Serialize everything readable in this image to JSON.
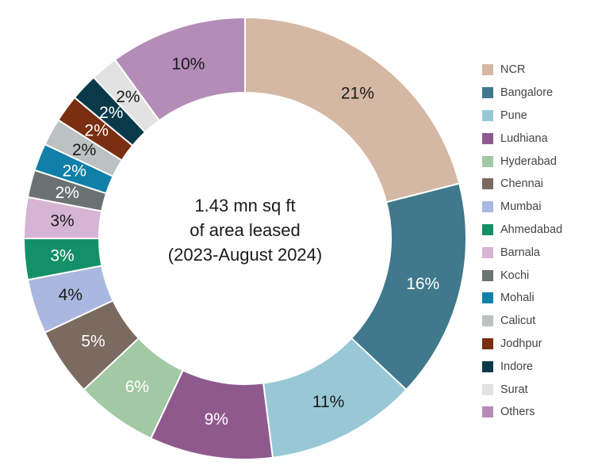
{
  "chart_data": {
    "type": "pie",
    "center_text": [
      "1.43 mn sq ft",
      "of area leased",
      "(2023-August 2024)"
    ],
    "slices": [
      {
        "name": "NCR",
        "value": 21,
        "label": "21%",
        "color": "#d5b8a3",
        "label_color": "#1a1a1a"
      },
      {
        "name": "Bangalore",
        "value": 16,
        "label": "16%",
        "color": "#40788c",
        "label_color": "#ffffff"
      },
      {
        "name": "Pune",
        "value": 11,
        "label": "11%",
        "color": "#98c8d6",
        "label_color": "#1a1a1a"
      },
      {
        "name": "Ludhiana",
        "value": 9,
        "label": "9%",
        "color": "#8e5a8e",
        "label_color": "#ffffff"
      },
      {
        "name": "Hyderabad",
        "value": 6,
        "label": "6%",
        "color": "#a3c8a4",
        "label_color": "#ffffff"
      },
      {
        "name": "Chennai",
        "value": 5,
        "label": "5%",
        "color": "#7a6a60",
        "label_color": "#ffffff"
      },
      {
        "name": "Mumbai",
        "value": 4,
        "label": "4%",
        "color": "#aab8e0",
        "label_color": "#1a1a1a"
      },
      {
        "name": "Ahmedabad",
        "value": 3,
        "label": "3%",
        "color": "#149068",
        "label_color": "#ffffff"
      },
      {
        "name": "Barnala",
        "value": 3,
        "label": "3%",
        "color": "#d6b4d4",
        "label_color": "#1a1a1a"
      },
      {
        "name": "Kochi",
        "value": 2,
        "label": "2%",
        "color": "#6a7272",
        "label_color": "#ffffff"
      },
      {
        "name": "Mohali",
        "value": 2,
        "label": "2%",
        "color": "#1080a8",
        "label_color": "#ffffff"
      },
      {
        "name": "Calicut",
        "value": 2,
        "label": "2%",
        "color": "#bcc2c2",
        "label_color": "#1a1a1a"
      },
      {
        "name": "Jodhpur",
        "value": 2,
        "label": "2%",
        "color": "#7a2e12",
        "label_color": "#ffffff"
      },
      {
        "name": "Indore",
        "value": 2,
        "label": "2%",
        "color": "#0a3a4a",
        "label_color": "#ffffff"
      },
      {
        "name": "Surat",
        "value": 2,
        "label": "2%",
        "color": "#e2e2e2",
        "label_color": "#1a1a1a"
      },
      {
        "name": "Others",
        "value": 10,
        "label": "10%",
        "color": "#b48cb8",
        "label_color": "#1a1a1a"
      }
    ],
    "legend_position": "right"
  }
}
